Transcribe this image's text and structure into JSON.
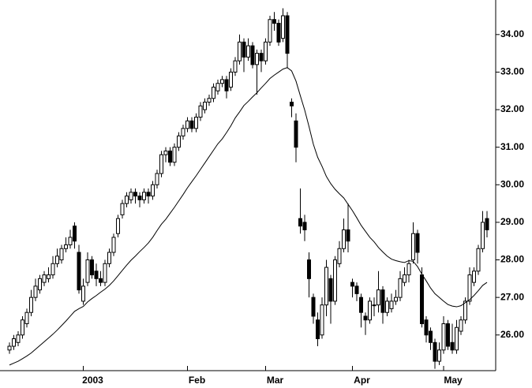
{
  "chart_data": {
    "type": "candlestick",
    "ohlc": [
      [
        25.6,
        25.8,
        25.5,
        25.7
      ],
      [
        25.7,
        26.0,
        25.6,
        25.9
      ],
      [
        25.8,
        26.1,
        25.7,
        26.0
      ],
      [
        26.0,
        26.5,
        25.9,
        26.4
      ],
      [
        26.3,
        26.7,
        26.2,
        26.6
      ],
      [
        26.6,
        27.2,
        26.5,
        27.0
      ],
      [
        27.0,
        27.5,
        26.9,
        27.3
      ],
      [
        27.2,
        27.6,
        27.1,
        27.5
      ],
      [
        27.4,
        27.7,
        27.3,
        27.6
      ],
      [
        27.5,
        27.8,
        27.4,
        27.6
      ],
      [
        27.6,
        28.1,
        27.5,
        27.9
      ],
      [
        27.9,
        28.3,
        27.8,
        28.1
      ],
      [
        28.0,
        28.4,
        27.9,
        28.3
      ],
      [
        28.3,
        28.6,
        28.2,
        28.4
      ],
      [
        28.4,
        28.8,
        28.3,
        28.6
      ],
      [
        28.9,
        29.0,
        28.3,
        28.5
      ],
      [
        28.2,
        28.4,
        27.1,
        27.2
      ],
      [
        26.9,
        27.5,
        26.8,
        27.3
      ],
      [
        27.4,
        28.2,
        27.3,
        28.0
      ],
      [
        28.0,
        28.1,
        27.5,
        27.6
      ],
      [
        27.7,
        27.9,
        27.3,
        27.5
      ],
      [
        27.5,
        27.7,
        27.3,
        27.4
      ],
      [
        27.4,
        28.0,
        27.3,
        27.9
      ],
      [
        27.9,
        28.3,
        27.8,
        28.2
      ],
      [
        28.2,
        28.7,
        28.1,
        28.6
      ],
      [
        28.7,
        29.2,
        28.6,
        29.1
      ],
      [
        29.2,
        29.6,
        29.1,
        29.5
      ],
      [
        29.5,
        29.8,
        29.4,
        29.7
      ],
      [
        29.6,
        29.9,
        29.5,
        29.8
      ],
      [
        29.8,
        29.9,
        29.5,
        29.7
      ],
      [
        29.7,
        29.8,
        29.4,
        29.6
      ],
      [
        29.6,
        29.9,
        29.5,
        29.8
      ],
      [
        29.8,
        29.9,
        29.5,
        29.7
      ],
      [
        29.7,
        30.1,
        29.6,
        30.0
      ],
      [
        30.0,
        30.4,
        29.9,
        30.3
      ],
      [
        30.3,
        30.9,
        30.2,
        30.8
      ],
      [
        30.8,
        31.0,
        30.6,
        30.9
      ],
      [
        30.9,
        31.0,
        30.5,
        30.6
      ],
      [
        30.6,
        31.1,
        30.5,
        31.0
      ],
      [
        31.0,
        31.4,
        30.9,
        31.3
      ],
      [
        31.3,
        31.6,
        31.2,
        31.5
      ],
      [
        31.5,
        31.8,
        31.4,
        31.7
      ],
      [
        31.7,
        31.8,
        31.4,
        31.5
      ],
      [
        31.5,
        31.9,
        31.4,
        31.8
      ],
      [
        31.8,
        32.2,
        31.7,
        32.1
      ],
      [
        32.0,
        32.3,
        31.9,
        32.2
      ],
      [
        32.2,
        32.4,
        32.1,
        32.3
      ],
      [
        32.3,
        32.7,
        32.2,
        32.6
      ],
      [
        32.5,
        32.8,
        32.4,
        32.7
      ],
      [
        32.7,
        32.9,
        32.6,
        32.8
      ],
      [
        32.8,
        32.9,
        32.3,
        32.5
      ],
      [
        32.6,
        33.1,
        32.5,
        33.0
      ],
      [
        33.0,
        33.4,
        32.9,
        33.3
      ],
      [
        33.3,
        34.0,
        33.2,
        33.8
      ],
      [
        33.8,
        33.9,
        33.0,
        33.4
      ],
      [
        33.4,
        33.9,
        33.3,
        33.7
      ],
      [
        33.7,
        33.8,
        33.1,
        33.2
      ],
      [
        33.2,
        33.6,
        32.4,
        33.5
      ],
      [
        33.5,
        33.6,
        33.0,
        33.3
      ],
      [
        33.3,
        33.9,
        33.2,
        33.8
      ],
      [
        33.8,
        34.5,
        33.7,
        34.4
      ],
      [
        34.4,
        34.6,
        34.1,
        34.3
      ],
      [
        34.3,
        34.4,
        33.7,
        33.8
      ],
      [
        33.9,
        34.7,
        33.8,
        34.5
      ],
      [
        34.5,
        34.6,
        33.1,
        33.5
      ],
      [
        32.2,
        32.3,
        31.8,
        32.1
      ],
      [
        31.7,
        31.9,
        30.6,
        31.0
      ],
      [
        29.1,
        29.9,
        28.7,
        28.9
      ],
      [
        29.0,
        29.2,
        28.5,
        28.8
      ],
      [
        28.0,
        28.2,
        27.0,
        27.5
      ],
      [
        27.0,
        27.1,
        26.3,
        26.5
      ],
      [
        26.4,
        26.6,
        25.7,
        25.9
      ],
      [
        26.0,
        27.0,
        25.9,
        26.8
      ],
      [
        26.8,
        28.0,
        26.5,
        27.8
      ],
      [
        27.5,
        27.6,
        26.3,
        26.9
      ],
      [
        26.9,
        28.1,
        26.8,
        28.0
      ],
      [
        27.9,
        28.5,
        27.8,
        28.3
      ],
      [
        28.3,
        29.1,
        28.2,
        28.8
      ],
      [
        28.8,
        29.5,
        28.2,
        28.5
      ],
      [
        27.4,
        27.5,
        27.0,
        27.3
      ],
      [
        27.3,
        27.4,
        26.9,
        27.1
      ],
      [
        27.0,
        27.1,
        26.2,
        26.6
      ],
      [
        26.5,
        26.6,
        26.0,
        26.4
      ],
      [
        26.4,
        27.0,
        26.3,
        26.9
      ],
      [
        26.8,
        27.0,
        26.5,
        26.8
      ],
      [
        26.8,
        27.7,
        26.6,
        27.2
      ],
      [
        27.2,
        27.3,
        26.3,
        26.6
      ],
      [
        26.6,
        27.0,
        26.5,
        26.9
      ],
      [
        26.7,
        27.1,
        26.6,
        26.9
      ],
      [
        26.9,
        27.2,
        26.8,
        27.0
      ],
      [
        27.0,
        27.7,
        26.9,
        27.5
      ],
      [
        27.4,
        27.8,
        27.3,
        27.6
      ],
      [
        27.6,
        28.0,
        27.4,
        27.9
      ],
      [
        28.0,
        29.0,
        27.9,
        28.7
      ],
      [
        28.7,
        28.8,
        27.9,
        28.2
      ],
      [
        27.6,
        27.8,
        26.2,
        26.3
      ],
      [
        26.4,
        26.5,
        25.8,
        26.0
      ],
      [
        26.1,
        26.2,
        25.6,
        25.8
      ],
      [
        25.8,
        25.9,
        25.1,
        25.3
      ],
      [
        25.3,
        25.8,
        25.2,
        25.6
      ],
      [
        25.6,
        26.5,
        25.5,
        26.3
      ],
      [
        26.3,
        26.4,
        25.6,
        25.7
      ],
      [
        25.8,
        26.3,
        25.5,
        25.6
      ],
      [
        25.6,
        26.4,
        25.5,
        26.2
      ],
      [
        26.1,
        26.5,
        26.0,
        26.4
      ],
      [
        26.4,
        27.0,
        26.3,
        26.9
      ],
      [
        26.9,
        27.8,
        26.8,
        27.6
      ],
      [
        27.4,
        27.8,
        27.3,
        27.7
      ],
      [
        27.7,
        28.4,
        27.6,
        28.3
      ],
      [
        28.3,
        29.3,
        28.2,
        29.0
      ],
      [
        29.1,
        29.3,
        28.6,
        28.8
      ]
    ],
    "ma": {
      "color": "#000000",
      "values": [
        25.2,
        25.25,
        25.3,
        25.37,
        25.44,
        25.52,
        25.62,
        25.72,
        25.82,
        25.92,
        26.02,
        26.13,
        26.25,
        26.37,
        26.5,
        26.63,
        26.7,
        26.76,
        26.88,
        26.97,
        27.05,
        27.14,
        27.22,
        27.32,
        27.44,
        27.58,
        27.72,
        27.86,
        27.99,
        28.1,
        28.22,
        28.33,
        28.45,
        28.6,
        28.78,
        28.95,
        29.08,
        29.24,
        29.4,
        29.57,
        29.74,
        29.92,
        30.08,
        30.24,
        30.41,
        30.58,
        30.75,
        30.92,
        31.09,
        31.22,
        31.39,
        31.57,
        31.78,
        31.94,
        32.11,
        32.22,
        32.34,
        32.45,
        32.58,
        32.7,
        32.83,
        32.92,
        33.0,
        33.08,
        33.12,
        33.03,
        32.76,
        32.37,
        31.99,
        31.55,
        31.08,
        30.73,
        30.49,
        30.22,
        30.03,
        29.88,
        29.76,
        29.65,
        29.48,
        29.31,
        29.12,
        28.92,
        28.76,
        28.6,
        28.48,
        28.33,
        28.21,
        28.1,
        28.02,
        27.98,
        27.95,
        27.93,
        27.98,
        27.96,
        27.82,
        27.62,
        27.44,
        27.25,
        27.1,
        27.0,
        26.9,
        26.81,
        26.77,
        26.75,
        26.78,
        26.86,
        26.94,
        27.05,
        27.18,
        27.32,
        27.4
      ]
    },
    "up_color": "#ffffff",
    "down_color": "#000000",
    "ylim": [
      25.05,
      34.92
    ],
    "yticks": [
      {
        "value": 26,
        "label": "26.00"
      },
      {
        "value": 27,
        "label": "27.00"
      },
      {
        "value": 28,
        "label": "28.00"
      },
      {
        "value": 29,
        "label": "29.00"
      },
      {
        "value": 30,
        "label": "30.00"
      },
      {
        "value": 31,
        "label": "31.00"
      },
      {
        "value": 32,
        "label": "32.00"
      },
      {
        "value": 33,
        "label": "33.00"
      },
      {
        "value": 34,
        "label": "34.00"
      }
    ],
    "xticks": [
      {
        "value": 17,
        "label": "2003"
      },
      {
        "value": 41,
        "label": "Feb"
      },
      {
        "value": 59,
        "label": "Mar"
      },
      {
        "value": 79,
        "label": "Apr"
      },
      {
        "value": 100,
        "label": "May"
      }
    ]
  }
}
